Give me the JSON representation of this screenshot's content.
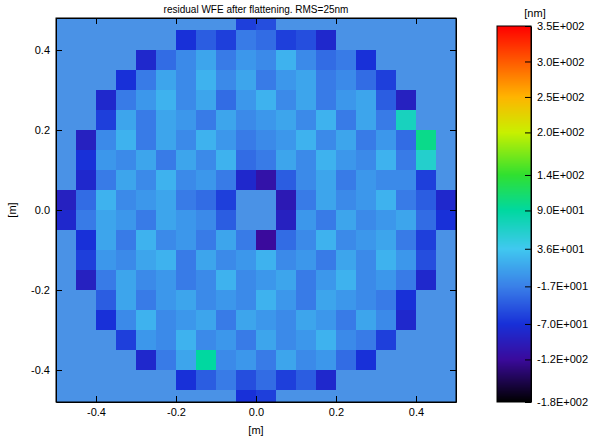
{
  "chart_data": {
    "type": "heatmap",
    "title": "residual WFE after flattening. RMS=25nm",
    "x_label": "[m]",
    "y_label": "[m]",
    "xlim": [
      -0.5,
      0.5
    ],
    "ylim": [
      -0.48,
      0.48
    ],
    "xticks": [
      -0.4,
      -0.2,
      {
        "value": 0,
        "label": "0.0"
      },
      0.2,
      0.4
    ],
    "yticks": [
      -0.4,
      -0.2,
      {
        "value": 0,
        "label": "0.0"
      },
      0.2,
      0.4
    ],
    "x": [
      -0.475,
      -0.425,
      -0.375,
      -0.325,
      -0.275,
      -0.225,
      -0.175,
      -0.125,
      -0.075,
      -0.025,
      0.025,
      0.075,
      0.125,
      0.175,
      0.225,
      0.275,
      0.325,
      0.375,
      0.425,
      0.475
    ],
    "y": [
      0.475,
      0.425,
      0.375,
      0.325,
      0.275,
      0.225,
      0.175,
      0.125,
      0.075,
      0.025,
      -0.025,
      -0.075,
      -0.125,
      -0.175,
      -0.225,
      -0.275,
      -0.325,
      -0.375,
      -0.425,
      -0.475
    ],
    "cells": [
      [
        null,
        null,
        null,
        null,
        null,
        null,
        null,
        null,
        null,
        -60,
        -50,
        null,
        null,
        null,
        null,
        null,
        null,
        null,
        null,
        null
      ],
      [
        null,
        null,
        null,
        null,
        null,
        null,
        -70,
        -40,
        -60,
        -20,
        -30,
        -60,
        -50,
        -80,
        null,
        null,
        null,
        null,
        null,
        null
      ],
      [
        null,
        null,
        null,
        null,
        -80,
        -30,
        -10,
        10,
        -20,
        0,
        -10,
        20,
        -10,
        -30,
        -20,
        -70,
        null,
        null,
        null,
        null
      ],
      [
        null,
        null,
        null,
        -70,
        -20,
        10,
        -10,
        20,
        -10,
        10,
        -20,
        0,
        10,
        -20,
        -10,
        -30,
        -60,
        null,
        null,
        null
      ],
      [
        null,
        null,
        -80,
        -20,
        0,
        20,
        -10,
        10,
        -30,
        0,
        20,
        -10,
        10,
        -20,
        0,
        10,
        -40,
        -90,
        null,
        null
      ],
      [
        null,
        null,
        -60,
        10,
        -20,
        10,
        0,
        -20,
        10,
        -10,
        0,
        10,
        -10,
        20,
        -20,
        10,
        -20,
        70,
        null,
        null
      ],
      [
        null,
        -90,
        -10,
        20,
        -20,
        10,
        -10,
        20,
        0,
        -20,
        -10,
        0,
        20,
        -10,
        10,
        -20,
        0,
        -30,
        100,
        null
      ],
      [
        null,
        -70,
        0,
        -10,
        10,
        -20,
        10,
        -10,
        20,
        -30,
        -20,
        10,
        -10,
        20,
        0,
        -10,
        20,
        -20,
        60,
        null
      ],
      [
        null,
        -80,
        -20,
        10,
        -10,
        20,
        -10,
        0,
        -20,
        -80,
        -110,
        -40,
        -10,
        10,
        -20,
        0,
        -10,
        -10,
        -60,
        null
      ],
      [
        -90,
        -30,
        20,
        -10,
        0,
        10,
        -20,
        -30,
        -60,
        null,
        null,
        -100,
        -20,
        10,
        -10,
        0,
        20,
        -20,
        -40,
        -80
      ],
      [
        -80,
        -20,
        10,
        0,
        -20,
        10,
        0,
        -10,
        -40,
        null,
        null,
        -90,
        0,
        -20,
        10,
        -10,
        0,
        10,
        -30,
        -70
      ],
      [
        null,
        -70,
        10,
        -20,
        20,
        -10,
        0,
        -20,
        10,
        -20,
        -120,
        -30,
        -10,
        20,
        -10,
        0,
        10,
        -20,
        -60,
        null
      ],
      [
        null,
        -60,
        0,
        -10,
        10,
        20,
        -20,
        10,
        -10,
        0,
        20,
        -10,
        0,
        -20,
        10,
        -10,
        20,
        0,
        -50,
        null
      ],
      [
        null,
        -90,
        -20,
        10,
        -10,
        0,
        -20,
        -10,
        20,
        -10,
        0,
        10,
        -20,
        0,
        20,
        -10,
        0,
        -20,
        -80,
        null
      ],
      [
        null,
        null,
        -40,
        10,
        -20,
        0,
        10,
        -10,
        0,
        -10,
        20,
        0,
        -20,
        10,
        0,
        -10,
        -20,
        -70,
        null,
        null
      ],
      [
        null,
        null,
        -70,
        -10,
        20,
        -10,
        0,
        10,
        -20,
        10,
        0,
        -10,
        10,
        0,
        -20,
        10,
        -10,
        -80,
        null,
        null
      ],
      [
        null,
        null,
        null,
        -60,
        0,
        -10,
        20,
        -10,
        0,
        -20,
        10,
        -10,
        0,
        20,
        -10,
        -20,
        -60,
        null,
        null,
        null
      ],
      [
        null,
        null,
        null,
        null,
        -80,
        -20,
        10,
        90,
        -10,
        0,
        -20,
        10,
        -10,
        0,
        -30,
        -70,
        null,
        null,
        null,
        null
      ],
      [
        null,
        null,
        null,
        null,
        null,
        null,
        -70,
        -40,
        -20,
        -50,
        -30,
        -60,
        -40,
        -80,
        null,
        null,
        null,
        null,
        null,
        null
      ],
      [
        null,
        null,
        null,
        null,
        null,
        null,
        null,
        null,
        null,
        -70,
        -60,
        null,
        null,
        null,
        null,
        null,
        null,
        null,
        null,
        null
      ]
    ],
    "colorbar": {
      "label": "[nm]",
      "range": [
        -180,
        350
      ],
      "ticks": [
        {
          "value": -180,
          "label": "-1.8E+002"
        },
        {
          "value": -120,
          "label": "-1.2E+002"
        },
        {
          "value": -70,
          "label": "-7.0E+001"
        },
        {
          "value": -17,
          "label": "-1.7E+001"
        },
        {
          "value": 36,
          "label": "3.6E+001"
        },
        {
          "value": 90,
          "label": "9.0E+001"
        },
        {
          "value": 140,
          "label": "1.4E+002"
        },
        {
          "value": 200,
          "label": "2.0E+002"
        },
        {
          "value": 250,
          "label": "2.5E+002"
        },
        {
          "value": 300,
          "label": "3.0E+002"
        },
        {
          "value": 350,
          "label": "3.5E+002"
        }
      ]
    }
  }
}
